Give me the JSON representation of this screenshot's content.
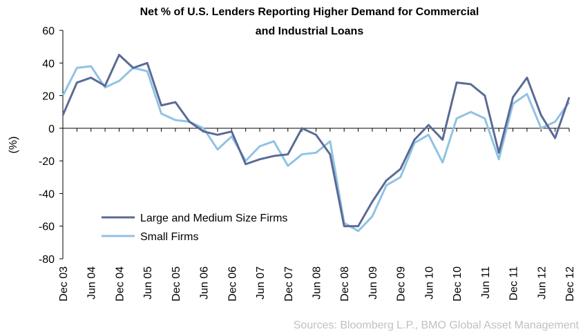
{
  "chart_data": {
    "type": "line",
    "title": [
      "Net % of U.S. Lenders Reporting Higher Demand for Commercial",
      "and Industrial Loans"
    ],
    "ylabel": "(%)",
    "source": "Sources: Bloomberg L.P., BMO Global Asset Management",
    "categories": [
      "Dec 03",
      null,
      "Jun 04",
      null,
      "Dec 04",
      null,
      "Jun 05",
      null,
      "Dec 05",
      null,
      "Jun 06",
      null,
      "Dec 06",
      null,
      "Jun 07",
      null,
      "Dec 07",
      null,
      "Jun 08",
      null,
      "Dec 08",
      null,
      "Jun 09",
      null,
      "Dec 09",
      null,
      "Jun 10",
      null,
      "Dec 10",
      null,
      "Jun 11",
      null,
      "Dec 11",
      null,
      "Jun 12",
      null,
      "Dec 12"
    ],
    "series": [
      {
        "name": "Large and Medium Size Firms",
        "color": "#5a6a94",
        "values": [
          8,
          28,
          31,
          26,
          45,
          37,
          40,
          14,
          16,
          4,
          -2,
          -4,
          -2,
          -22,
          -19,
          -17,
          -16,
          0,
          -4,
          -16,
          -60,
          -60,
          -45,
          -32,
          -25,
          -7,
          2,
          -7,
          28,
          27,
          20,
          -15,
          19,
          31,
          8,
          -6,
          19
        ]
      },
      {
        "name": "Small Firms",
        "color": "#8fc3e3",
        "values": [
          20,
          37,
          38,
          25,
          29,
          37,
          35,
          9,
          5,
          4,
          0,
          -13,
          -5,
          -20,
          -11,
          -8,
          -23,
          -16,
          -15,
          -8,
          -58,
          -63,
          -54,
          -35,
          -30,
          -9,
          -4,
          -21,
          6,
          10,
          6,
          -19,
          15,
          21,
          0,
          4,
          16
        ]
      }
    ],
    "ylim": [
      -80,
      60
    ],
    "yticks": [
      -80,
      -60,
      -40,
      -20,
      0,
      20,
      40,
      60
    ],
    "legend": "lower left"
  }
}
